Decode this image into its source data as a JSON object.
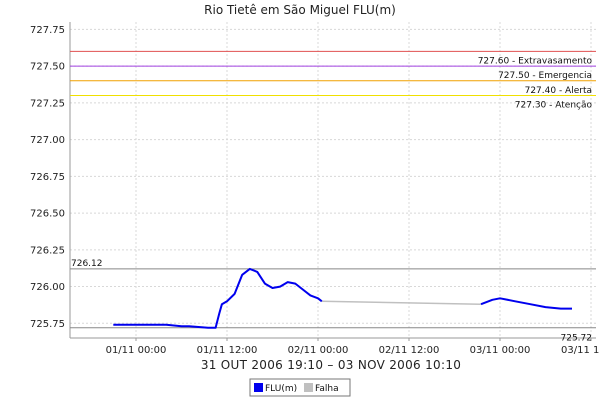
{
  "chart_data": {
    "type": "line",
    "title": "Rio Tietê em São Miguel FLU(m)",
    "xlabel": "31 OUT 2006 19:10 – 03 NOV 2006 10:10",
    "ylim": [
      725.65,
      727.8
    ],
    "xlim": [
      "2006-10-31 19:10",
      "2006-11-03 10:10"
    ],
    "y_ticks": [
      "727.75",
      "727.50",
      "727.25",
      "727.00",
      "726.75",
      "726.50",
      "726.25",
      "726.00",
      "725.75"
    ],
    "y_tick_values": [
      727.75,
      727.5,
      727.25,
      727.0,
      726.75,
      726.5,
      726.25,
      726.0,
      725.75
    ],
    "x_ticks": [
      "01/11 00:00",
      "01/11 12:00",
      "02/11 00:00",
      "02/11 12:00",
      "03/11 00:00",
      "03/11 12"
    ],
    "x_tick_values": [
      "2006-11-01 00:00",
      "2006-11-01 12:00",
      "2006-11-02 00:00",
      "2006-11-02 12:00",
      "2006-11-03 00:00",
      "2006-11-03 12:00"
    ],
    "grid": true,
    "legend_position": "bottom-center",
    "thresholds": [
      {
        "value": 727.6,
        "label": "727.60 - Extravasamento",
        "color": "#e05050"
      },
      {
        "value": 727.5,
        "label": "727.50 - Emergencia",
        "color": "#a040e0"
      },
      {
        "value": 727.4,
        "label": "727.40 - Alerta",
        "color": "#f0a000"
      },
      {
        "value": 727.3,
        "label": "727.30 - Atenção",
        "color": "#f0e000"
      }
    ],
    "markers": [
      {
        "value": 726.12,
        "label": "726.12",
        "color": "#888888"
      },
      {
        "value": 725.72,
        "label": "725.72",
        "color": "#888888"
      }
    ],
    "series": [
      {
        "name": "FLU(m)",
        "color": "#0000ee",
        "segments": [
          {
            "x": [
              "2006-10-31 21:00",
              "2006-11-01 00:00",
              "2006-11-01 04:00",
              "2006-11-01 06:00",
              "2006-11-01 07:00",
              "2006-11-01 09:30",
              "2006-11-01 10:30",
              "2006-11-01 11:00",
              "2006-11-01 11:20",
              "2006-11-01 12:00",
              "2006-11-01 13:00",
              "2006-11-01 14:00",
              "2006-11-01 15:00",
              "2006-11-01 16:00",
              "2006-11-01 17:00",
              "2006-11-01 18:00",
              "2006-11-01 19:00",
              "2006-11-01 20:00",
              "2006-11-01 21:00",
              "2006-11-01 22:00",
              "2006-11-01 23:00",
              "2006-11-02 00:00",
              "2006-11-02 00:30"
            ],
            "y": [
              725.74,
              725.74,
              725.74,
              725.73,
              725.73,
              725.72,
              725.72,
              725.82,
              725.88,
              725.9,
              725.95,
              726.08,
              726.12,
              726.1,
              726.02,
              725.99,
              726.0,
              726.03,
              726.02,
              725.98,
              725.94,
              725.92,
              725.9
            ]
          },
          {
            "x": [
              "2006-11-02 21:30",
              "2006-11-02 23:00",
              "2006-11-03 00:00",
              "2006-11-03 02:00",
              "2006-11-03 04:00",
              "2006-11-03 06:00",
              "2006-11-03 08:00",
              "2006-11-03 09:30"
            ],
            "y": [
              725.88,
              725.91,
              725.92,
              725.9,
              725.88,
              725.86,
              725.85,
              725.85
            ]
          }
        ]
      },
      {
        "name": "Falha",
        "color": "#c0c0c0",
        "segments": [
          {
            "x": [
              "2006-11-02 00:30",
              "2006-11-02 21:30"
            ],
            "y": [
              725.9,
              725.88
            ]
          }
        ]
      }
    ]
  }
}
